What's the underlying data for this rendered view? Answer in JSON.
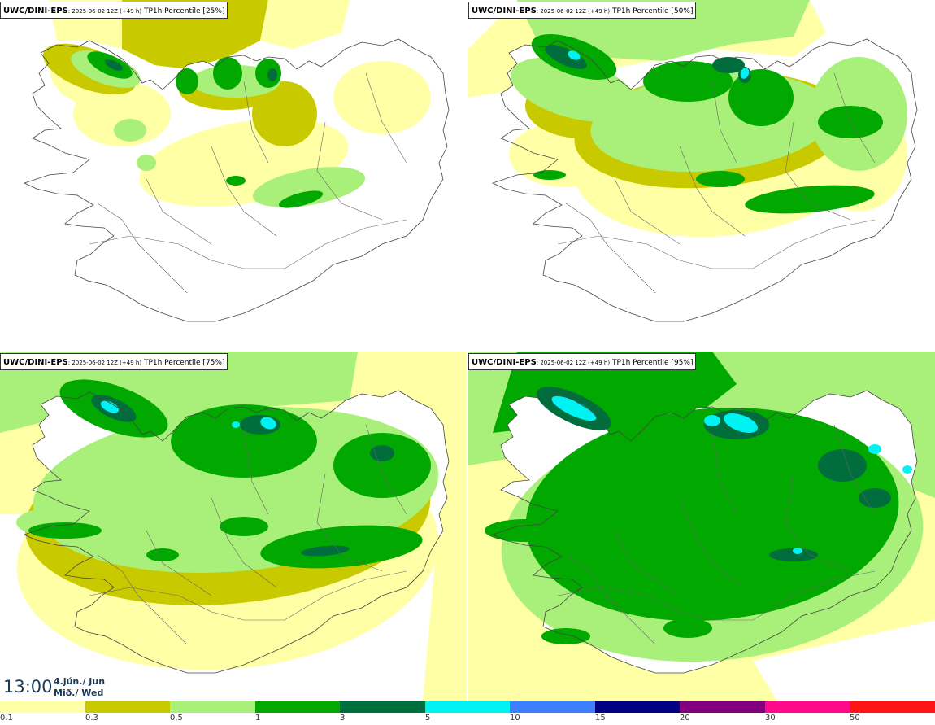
{
  "panels": [
    {
      "model": "UWC/DINI-EPS",
      "run": ": 2025-06-02 12Z (+49 h)",
      "field": " TP1h Percentile [25%]",
      "level": 0
    },
    {
      "model": "UWC/DINI-EPS",
      "run": ": 2025-06-02 12Z (+49 h)",
      "field": " TP1h Percentile [50%]",
      "level": 1
    },
    {
      "model": "UWC/DINI-EPS",
      "run": ": 2025-06-02 12Z (+49 h)",
      "field": " TP1h Percentile [75%]",
      "level": 2
    },
    {
      "model": "UWC/DINI-EPS",
      "run": ": 2025-06-02 12Z (+49 h)",
      "field": " TP1h Percentile [95%]",
      "level": 3
    }
  ],
  "valid_time": {
    "time": "13:00",
    "date": "4.jún./ Jun",
    "weekday": "Mið./ Wed"
  },
  "legend": {
    "colors": [
      "#ffffa6",
      "#c9c900",
      "#a9f07a",
      "#00a800",
      "#006e3c",
      "#00f2f2",
      "#3d7fff",
      "#000080",
      "#800080",
      "#ff0a8c",
      "#ff1414"
    ],
    "labels": [
      "0.1",
      "0.3",
      "0.5",
      "1",
      "3",
      "5",
      "10",
      "15",
      "20",
      "30",
      "50"
    ]
  },
  "map_colors": {
    "light_yellow": "#ffffa6",
    "olive": "#c9c900",
    "light_green": "#a9f07a",
    "green": "#00a800",
    "dark_green": "#006e3c",
    "cyan": "#00f2f2"
  }
}
